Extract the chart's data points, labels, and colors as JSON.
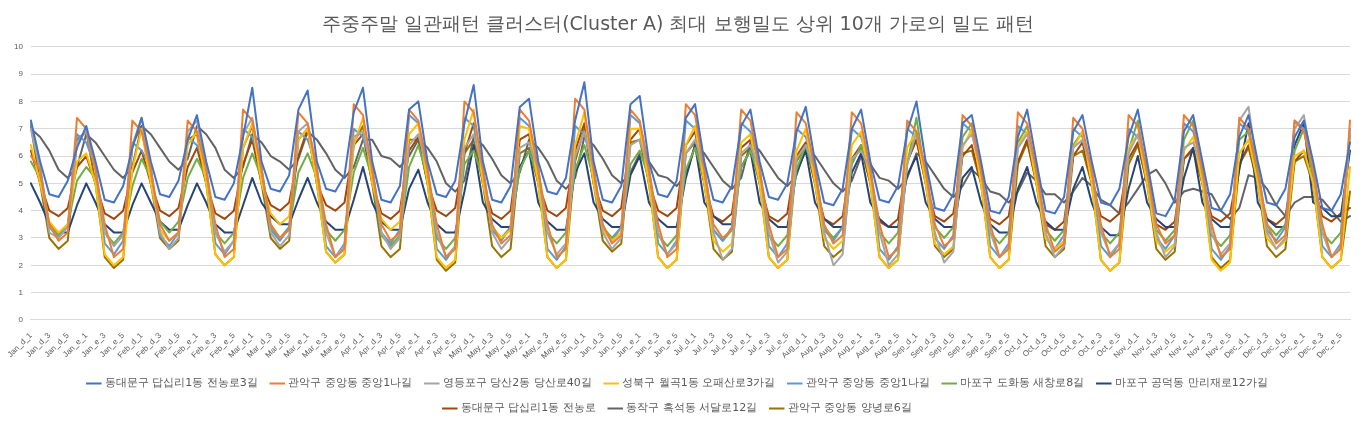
{
  "chart_data": {
    "type": "line",
    "title": "주중주말 일관패턴 클러스터(Cluster A) 최대 보행밀도 상위 10개 가로의 밀도 패턴",
    "categories": [
      "Jan_d_1",
      null,
      "Jan_d_3",
      null,
      "Jan_d_5",
      null,
      "Jan_e_1",
      null,
      "Jan_e_3",
      null,
      "Jan_e_5",
      null,
      "Feb_d_1",
      null,
      "Feb_d_3",
      null,
      "Feb_d_5",
      null,
      "Feb_e_1",
      null,
      "Feb_e_3",
      null,
      "Feb_e_5",
      null,
      "Mar_d_1",
      null,
      "Mar_d_3",
      null,
      "Mar_d_5",
      null,
      "Mar_e_1",
      null,
      "Mar_e_3",
      null,
      "Mar_e_5",
      null,
      "Apr_d_1",
      null,
      "Apr_d_3",
      null,
      "Apr_d_5",
      null,
      "Apr_e_1",
      null,
      "Apr_e_3",
      null,
      "Apr_e_5",
      null,
      "May_d_1",
      null,
      "May_d_3",
      null,
      "May_d_5",
      null,
      "May_e_1",
      null,
      "May_e_3",
      null,
      "May_e_5",
      null,
      "Jun_d_1",
      null,
      "Jun_d_3",
      null,
      "Jun_d_5",
      null,
      "Jun_e_1",
      null,
      "Jun_e_3",
      null,
      "Jun_e_5",
      null,
      "Jul_d_1",
      null,
      "Jul_d_3",
      null,
      "Jul_d_5",
      null,
      "Jul_e_1",
      null,
      "Jul_e_3",
      null,
      "Jul_e_5",
      null,
      "Aug_d_1",
      null,
      "Aug_d_3",
      null,
      "Aug_d_5",
      null,
      "Aug_e_1",
      null,
      "Aug_e_3",
      null,
      "Aug_e_5",
      null,
      "Sep_d_1",
      null,
      "Sep_d_3",
      null,
      "Sep_d_5",
      null,
      "Sep_e_1",
      null,
      "Sep_e_3",
      null,
      "Sep_e_5",
      null,
      "Oct_d_1",
      null,
      "Oct_d_3",
      null,
      "Oct_d_5",
      null,
      "Oct_e_1",
      null,
      "Oct_e_3",
      null,
      "Oct_e_5",
      null,
      "Nov_d_1",
      null,
      "Nov_d_3",
      null,
      "Nov_d_5",
      null,
      "Nov_e_1",
      null,
      "Nov_e_3",
      null,
      "Nov_e_5",
      null,
      "Dec_d_1",
      null,
      "Dec_d_3",
      null,
      "Dec_d_5",
      null,
      "Dec_e_1",
      null,
      "Dec_e_3",
      null,
      "Dec_e_5",
      null
    ],
    "series": [
      {
        "name": "동대문구 답십리1동 전농로3길",
        "color": "#4472c4",
        "values": [
          7.3,
          5.8,
          4.6,
          4.5,
          5.1,
          6.3,
          7.1,
          5.8,
          4.4,
          4.3,
          4.9,
          6.3,
          7.4,
          5.8,
          4.6,
          4.5,
          5.1,
          6.6,
          7.5,
          5.8,
          4.5,
          4.4,
          5.0,
          6.7,
          8.5,
          5.8,
          4.8,
          4.7,
          5.3,
          7.7,
          8.4,
          5.8,
          4.8,
          4.7,
          5.3,
          7.6,
          8.5,
          5.8,
          4.4,
          4.3,
          4.9,
          7.7,
          8.0,
          5.8,
          4.6,
          4.5,
          5.1,
          7.2,
          8.6,
          5.8,
          4.4,
          4.3,
          4.9,
          7.8,
          8.1,
          5.8,
          4.7,
          4.6,
          5.2,
          7.3,
          8.7,
          5.8,
          4.4,
          4.3,
          4.9,
          7.9,
          8.2,
          5.8,
          4.6,
          4.5,
          5.1,
          7.4,
          7.9,
          5.8,
          4.4,
          4.3,
          4.9,
          7.1,
          7.7,
          5.8,
          4.5,
          4.4,
          5.0,
          6.9,
          7.8,
          5.8,
          4.3,
          4.2,
          4.8,
          7.0,
          7.7,
          5.8,
          4.4,
          4.3,
          4.9,
          6.9,
          8.0,
          5.8,
          4.1,
          4.0,
          4.6,
          7.2,
          7.5,
          5.8,
          4.0,
          3.9,
          4.5,
          6.7,
          7.7,
          5.8,
          4.0,
          3.9,
          4.5,
          6.9,
          7.5,
          5.8,
          4.3,
          4.2,
          4.8,
          6.7,
          7.7,
          5.8,
          3.9,
          3.8,
          4.4,
          6.9,
          7.5,
          5.8,
          4.1,
          4.0,
          4.6,
          6.7,
          7.5,
          5.8,
          4.3,
          4.2,
          4.8,
          6.7,
          7.3,
          5.8,
          4.1,
          4.0,
          4.6,
          6.5
        ]
      },
      {
        "name": "관악구 중앙동 중앙1나길",
        "color": "#ed7d31",
        "values": [
          6.0,
          5.5,
          3.5,
          2.9,
          3.2,
          7.4,
          7.0,
          5.5,
          3.5,
          2.3,
          2.6,
          7.3,
          6.9,
          5.5,
          3.5,
          2.9,
          3.2,
          7.3,
          6.9,
          5.5,
          3.5,
          2.3,
          2.6,
          7.7,
          7.3,
          5.5,
          3.5,
          3.0,
          3.3,
          7.6,
          7.2,
          5.5,
          3.5,
          2.3,
          2.6,
          7.9,
          7.5,
          5.5,
          3.5,
          2.9,
          3.2,
          7.7,
          7.3,
          5.5,
          3.5,
          2.3,
          2.6,
          8.0,
          7.6,
          5.5,
          3.5,
          2.8,
          3.1,
          7.7,
          7.3,
          5.5,
          3.5,
          2.3,
          2.6,
          8.1,
          7.7,
          5.5,
          3.5,
          2.8,
          3.1,
          7.7,
          7.3,
          5.5,
          3.5,
          2.3,
          2.6,
          7.9,
          7.5,
          5.5,
          3.5,
          3.0,
          3.3,
          7.7,
          7.3,
          5.5,
          3.5,
          2.3,
          2.6,
          7.6,
          7.2,
          5.5,
          3.5,
          2.8,
          3.1,
          7.6,
          7.2,
          5.5,
          3.5,
          2.3,
          2.6,
          7.3,
          6.9,
          5.5,
          3.5,
          2.7,
          3.0,
          7.5,
          7.1,
          5.5,
          3.5,
          2.3,
          2.6,
          7.6,
          7.2,
          5.5,
          3.5,
          2.5,
          2.8,
          7.4,
          7.0,
          5.5,
          3.5,
          2.3,
          2.6,
          7.5,
          7.1,
          5.5,
          3.5,
          2.8,
          3.1,
          7.5,
          7.1,
          5.5,
          3.5,
          2.3,
          2.6,
          7.4,
          7.0,
          5.5,
          3.5,
          2.8,
          3.1,
          7.3,
          6.9,
          5.5,
          3.5,
          2.3,
          2.6,
          7.3
        ]
      },
      {
        "name": "영등포구 당산2동 당산로40길",
        "color": "#a5a5a5",
        "values": [
          7.0,
          5.5,
          3.2,
          3.0,
          3.4,
          6.5,
          6.9,
          5.5,
          3.2,
          2.7,
          3.1,
          6.4,
          7.4,
          5.5,
          3.2,
          2.6,
          3.0,
          6.9,
          7.3,
          5.5,
          3.2,
          2.5,
          2.9,
          6.8,
          7.4,
          5.5,
          3.2,
          2.7,
          3.1,
          6.9,
          7.2,
          5.5,
          3.2,
          2.3,
          2.7,
          6.7,
          6.9,
          5.5,
          3.2,
          2.6,
          3.0,
          6.4,
          6.8,
          5.5,
          3.2,
          2.3,
          2.7,
          6.3,
          6.8,
          5.5,
          3.2,
          2.6,
          3.0,
          6.3,
          6.5,
          5.5,
          3.2,
          2.4,
          2.8,
          6.0,
          6.9,
          5.5,
          3.2,
          2.6,
          3.0,
          6.4,
          6.6,
          5.5,
          3.2,
          2.4,
          2.8,
          6.1,
          6.6,
          5.5,
          3.2,
          2.2,
          2.6,
          6.1,
          6.4,
          5.5,
          3.2,
          2.1,
          2.5,
          5.9,
          6.4,
          5.5,
          3.2,
          2.0,
          2.4,
          5.9,
          6.2,
          5.5,
          3.2,
          2.0,
          2.4,
          5.7,
          6.9,
          5.5,
          3.2,
          2.1,
          2.5,
          6.4,
          6.8,
          5.5,
          3.2,
          2.3,
          2.7,
          6.3,
          6.8,
          5.5,
          3.2,
          2.3,
          2.7,
          6.3,
          6.6,
          5.5,
          3.2,
          2.4,
          2.8,
          6.1,
          6.8,
          5.5,
          3.2,
          2.3,
          2.7,
          6.3,
          6.5,
          5.5,
          3.2,
          2.4,
          2.8,
          7.3,
          7.8,
          5.5,
          3.2,
          2.6,
          3.0,
          7.0,
          7.5,
          5.5,
          3.2,
          2.3,
          2.7,
          6.8
        ]
      },
      {
        "name": "성북구 월곡1동 오패산로3가길",
        "color": "#ffc000",
        "values": [
          6.4,
          5.0,
          3.6,
          3.2,
          3.5,
          5.8,
          6.1,
          5.0,
          2.4,
          2.0,
          2.3,
          5.5,
          7.0,
          5.0,
          3.3,
          2.9,
          3.2,
          6.4,
          6.9,
          5.0,
          2.4,
          2.0,
          2.3,
          6.3,
          7.2,
          5.0,
          3.9,
          3.5,
          3.8,
          6.6,
          7.0,
          5.0,
          2.5,
          2.1,
          2.4,
          6.4,
          7.4,
          5.0,
          3.7,
          3.3,
          3.6,
          6.8,
          7.2,
          5.0,
          2.3,
          1.9,
          2.2,
          6.6,
          7.7,
          5.0,
          3.4,
          3.0,
          3.3,
          7.1,
          7.0,
          5.0,
          2.3,
          1.9,
          2.2,
          6.4,
          7.6,
          5.0,
          3.3,
          2.9,
          3.2,
          7.0,
          7.0,
          5.0,
          2.3,
          1.9,
          2.2,
          6.4,
          7.1,
          5.0,
          2.9,
          2.5,
          2.8,
          6.5,
          6.8,
          5.0,
          2.3,
          1.9,
          2.2,
          6.2,
          7.0,
          5.0,
          3.0,
          2.6,
          2.9,
          6.4,
          6.9,
          5.0,
          2.3,
          1.9,
          2.2,
          6.3,
          6.9,
          5.0,
          2.8,
          2.4,
          2.7,
          6.3,
          7.0,
          5.0,
          2.3,
          1.9,
          2.2,
          6.4,
          6.9,
          5.0,
          3.0,
          2.6,
          2.9,
          6.3,
          6.9,
          5.0,
          2.2,
          1.8,
          2.1,
          6.3,
          6.8,
          5.0,
          2.9,
          2.5,
          2.8,
          6.2,
          6.7,
          5.0,
          2.2,
          1.8,
          2.1,
          6.1,
          6.6,
          5.0,
          3.0,
          2.6,
          2.9,
          6.0,
          6.2,
          5.0,
          2.3,
          1.9,
          2.2,
          5.6
        ]
      },
      {
        "name": "관악구 중앙동 중앙1나길",
        "color": "#5b9bd5",
        "values": [
          7.2,
          5.6,
          3.4,
          3.0,
          3.5,
          6.8,
          6.5,
          5.6,
          2.8,
          2.4,
          2.9,
          6.5,
          6.2,
          5.6,
          3.1,
          2.7,
          3.2,
          6.7,
          6.4,
          5.6,
          2.8,
          2.4,
          2.9,
          7.0,
          6.7,
          5.6,
          3.3,
          2.9,
          3.4,
          6.9,
          6.6,
          5.6,
          2.7,
          2.3,
          2.8,
          7.0,
          6.7,
          5.6,
          3.2,
          2.8,
          3.3,
          7.5,
          7.2,
          5.6,
          2.6,
          2.2,
          2.7,
          7.4,
          7.1,
          5.6,
          3.3,
          2.9,
          3.4,
          7.4,
          7.1,
          5.6,
          2.6,
          2.2,
          2.7,
          7.1,
          6.8,
          5.6,
          3.3,
          2.9,
          3.4,
          7.5,
          7.2,
          5.6,
          2.8,
          2.4,
          2.9,
          7.3,
          7.0,
          5.6,
          3.3,
          2.9,
          3.4,
          7.2,
          6.9,
          5.6,
          2.7,
          2.3,
          2.8,
          7.0,
          6.7,
          5.6,
          3.3,
          2.9,
          3.4,
          7.0,
          6.7,
          5.6,
          2.6,
          2.2,
          2.7,
          7.0,
          6.7,
          5.6,
          3.0,
          2.6,
          3.1,
          7.2,
          6.9,
          5.6,
          2.7,
          2.3,
          2.8,
          7.1,
          6.8,
          5.6,
          3.0,
          2.6,
          3.1,
          7.0,
          6.7,
          5.6,
          2.7,
          2.3,
          2.8,
          7.0,
          6.7,
          5.6,
          3.0,
          2.6,
          3.1,
          7.2,
          6.9,
          5.6,
          2.6,
          2.2,
          2.7,
          7.2,
          6.9,
          5.6,
          3.3,
          2.9,
          3.4,
          7.3,
          7.0,
          5.6,
          2.7,
          2.3,
          2.8,
          7.0
        ]
      },
      {
        "name": "마포구 도화동 새창로8길",
        "color": "#70ad47",
        "values": [
          5.8,
          5.2,
          3.5,
          3.1,
          3.5,
          5.1,
          5.6,
          5.2,
          3.2,
          2.8,
          3.2,
          4.9,
          5.9,
          5.2,
          3.6,
          3.2,
          3.6,
          5.2,
          5.9,
          5.2,
          3.2,
          2.8,
          3.2,
          5.2,
          6.1,
          5.2,
          3.4,
          3.0,
          3.4,
          5.4,
          6.1,
          5.2,
          3.3,
          2.9,
          3.3,
          5.4,
          6.3,
          5.2,
          3.1,
          2.7,
          3.1,
          5.6,
          6.4,
          5.2,
          3.0,
          2.6,
          3.0,
          5.7,
          6.2,
          5.2,
          3.4,
          3.0,
          3.4,
          5.5,
          6.2,
          5.2,
          3.2,
          2.8,
          3.2,
          5.5,
          6.4,
          5.2,
          3.4,
          3.0,
          3.4,
          5.7,
          6.2,
          5.2,
          3.1,
          2.7,
          3.1,
          5.5,
          6.3,
          5.2,
          3.3,
          2.9,
          3.3,
          5.6,
          6.2,
          5.2,
          3.1,
          2.7,
          3.1,
          5.5,
          6.4,
          5.2,
          3.4,
          3.0,
          3.4,
          5.7,
          6.4,
          5.2,
          3.2,
          2.8,
          3.2,
          5.7,
          7.4,
          5.2,
          3.4,
          3.0,
          3.4,
          6.7,
          7.2,
          5.2,
          3.2,
          2.8,
          3.2,
          6.5,
          7.1,
          5.2,
          3.3,
          2.9,
          3.3,
          6.4,
          6.9,
          5.2,
          3.2,
          2.8,
          3.2,
          6.2,
          7.3,
          5.2,
          3.3,
          2.9,
          3.3,
          6.6,
          7.3,
          5.2,
          3.1,
          2.7,
          3.1,
          6.6,
          6.9,
          5.2,
          3.5,
          3.1,
          3.5,
          6.2,
          7.0,
          5.2,
          3.2,
          2.8,
          3.2,
          6.8
        ]
      },
      {
        "name": "마포구 공덕동 만리재로12가길",
        "color": "#264478",
        "values": [
          5.0,
          4.3,
          3.5,
          3.2,
          3.2,
          4.2,
          5.0,
          4.3,
          3.5,
          3.2,
          3.2,
          4.2,
          5.0,
          4.3,
          3.6,
          3.3,
          3.3,
          4.2,
          5.0,
          4.3,
          3.5,
          3.2,
          3.2,
          4.2,
          5.2,
          4.3,
          3.8,
          3.5,
          3.5,
          4.4,
          5.2,
          4.3,
          3.6,
          3.3,
          3.3,
          4.4,
          5.6,
          4.3,
          3.6,
          3.3,
          3.3,
          4.8,
          5.5,
          4.3,
          3.5,
          3.2,
          3.2,
          4.7,
          6.4,
          4.3,
          3.7,
          3.4,
          3.4,
          5.6,
          6.2,
          4.3,
          3.6,
          3.3,
          3.3,
          5.4,
          6.1,
          4.3,
          3.7,
          3.4,
          3.4,
          5.3,
          6.0,
          4.3,
          3.7,
          3.4,
          3.4,
          5.2,
          6.4,
          4.3,
          3.8,
          3.5,
          3.5,
          5.6,
          6.2,
          4.3,
          3.7,
          3.4,
          3.4,
          5.4,
          6.2,
          4.3,
          3.7,
          3.4,
          3.4,
          5.4,
          6.1,
          4.3,
          3.7,
          3.4,
          3.4,
          5.3,
          6.0,
          4.3,
          3.7,
          3.4,
          3.4,
          5.2,
          5.6,
          4.3,
          3.5,
          3.2,
          3.2,
          4.8,
          5.6,
          4.3,
          3.6,
          3.3,
          3.3,
          4.8,
          5.6,
          4.3,
          3.4,
          3.1,
          3.1,
          4.8,
          6.0,
          4.3,
          3.7,
          3.4,
          3.4,
          5.2,
          6.3,
          4.3,
          3.7,
          3.4,
          3.4,
          5.5,
          7.2,
          4.3,
          3.7,
          3.4,
          3.4,
          6.4,
          7.2,
          4.3,
          4.1,
          3.8,
          3.8,
          6.2
        ]
      },
      {
        "name": "동대문구 답십리1동 전농로",
        "color": "#9e480e",
        "values": [
          6.2,
          5.0,
          4.0,
          3.8,
          4.1,
          5.6,
          6.0,
          5.0,
          3.9,
          3.7,
          4.0,
          5.4,
          6.2,
          5.0,
          4.0,
          3.8,
          4.1,
          5.6,
          6.3,
          5.0,
          3.9,
          3.7,
          4.0,
          5.7,
          6.6,
          5.0,
          4.2,
          4.0,
          4.3,
          6.0,
          7.0,
          5.0,
          4.2,
          4.0,
          4.3,
          6.4,
          6.8,
          5.0,
          3.9,
          3.7,
          4.0,
          6.2,
          6.7,
          5.0,
          4.0,
          3.8,
          4.1,
          6.1,
          7.2,
          5.0,
          3.9,
          3.7,
          4.0,
          6.6,
          6.8,
          5.0,
          4.0,
          3.8,
          4.1,
          6.2,
          7.2,
          5.0,
          4.0,
          3.8,
          4.1,
          6.6,
          7.0,
          5.0,
          4.0,
          3.8,
          4.1,
          6.4,
          6.9,
          5.0,
          3.8,
          3.6,
          3.9,
          6.3,
          6.6,
          5.0,
          3.8,
          3.6,
          3.9,
          6.0,
          6.5,
          5.0,
          3.7,
          3.5,
          3.8,
          5.9,
          6.4,
          5.0,
          3.6,
          3.4,
          3.7,
          5.8,
          6.6,
          5.0,
          3.8,
          3.6,
          3.9,
          6.0,
          6.4,
          5.0,
          3.7,
          3.5,
          3.8,
          5.8,
          6.6,
          5.0,
          3.5,
          3.3,
          3.6,
          6.0,
          6.5,
          5.0,
          3.8,
          3.6,
          3.9,
          5.9,
          6.5,
          5.0,
          3.5,
          3.3,
          3.6,
          5.9,
          6.3,
          5.0,
          3.8,
          3.6,
          3.9,
          5.7,
          6.4,
          5.0,
          3.7,
          3.5,
          3.8,
          5.8,
          6.2,
          5.0,
          3.8,
          3.6,
          3.9,
          4.1
        ]
      },
      {
        "name": "동작구 흑석동 서달로12길",
        "color": "#636363",
        "values": [
          7.0,
          6.7,
          6.2,
          5.5,
          5.2,
          5.6,
          6.8,
          6.5,
          6.0,
          5.5,
          5.2,
          5.6,
          7.1,
          6.8,
          6.3,
          5.8,
          5.5,
          5.9,
          7.1,
          6.8,
          6.3,
          5.5,
          5.2,
          5.6,
          6.8,
          6.5,
          6.0,
          5.8,
          5.5,
          5.9,
          6.9,
          6.6,
          6.1,
          5.5,
          5.2,
          5.6,
          6.6,
          6.6,
          6.0,
          5.9,
          5.6,
          6.0,
          6.6,
          6.3,
          5.8,
          5.0,
          4.7,
          5.1,
          6.7,
          6.4,
          5.9,
          5.3,
          5.0,
          5.4,
          6.6,
          6.3,
          5.8,
          5.1,
          4.8,
          5.2,
          6.7,
          6.4,
          5.9,
          5.3,
          5.0,
          5.4,
          6.1,
          5.8,
          5.3,
          5.2,
          4.9,
          5.3,
          6.4,
          6.1,
          5.6,
          5.1,
          4.8,
          5.2,
          6.5,
          6.2,
          5.7,
          5.2,
          4.9,
          5.3,
          6.3,
          6.0,
          5.5,
          5.0,
          4.7,
          5.1,
          6.0,
          5.7,
          5.2,
          5.1,
          4.8,
          5.2,
          6.1,
          5.8,
          5.3,
          4.8,
          4.5,
          4.9,
          5.5,
          5.2,
          4.7,
          4.6,
          4.3,
          4.7,
          5.4,
          5.1,
          4.6,
          4.6,
          4.3,
          4.7,
          5.2,
          4.9,
          4.4,
          4.2,
          3.9,
          4.3,
          4.8,
          5.3,
          5.5,
          5.0,
          4.3,
          4.7,
          4.8,
          4.7,
          4.6,
          4.0,
          3.7,
          4.1,
          5.3,
          5.2,
          4.8,
          4.2,
          3.8,
          4.3,
          4.5,
          4.5,
          4.4,
          4.0,
          3.6,
          3.8
        ]
      },
      {
        "name": "관악구 중앙동 양녕로6길",
        "color": "#997300",
        "values": [
          7.1,
          5.0,
          3.0,
          2.6,
          2.9,
          6.6,
          6.9,
          5.0,
          2.3,
          1.9,
          2.2,
          6.4,
          7.1,
          5.0,
          3.0,
          2.6,
          2.9,
          6.6,
          6.8,
          5.0,
          2.4,
          2.0,
          2.3,
          6.3,
          7.1,
          5.0,
          3.0,
          2.6,
          2.9,
          6.6,
          7.0,
          5.0,
          2.5,
          2.1,
          2.4,
          6.5,
          7.1,
          5.0,
          2.7,
          2.3,
          2.6,
          6.6,
          6.6,
          5.0,
          2.2,
          1.8,
          2.1,
          6.1,
          6.6,
          5.0,
          2.7,
          2.3,
          2.6,
          6.1,
          6.3,
          5.0,
          2.3,
          1.9,
          2.2,
          5.8,
          7.0,
          5.0,
          2.9,
          2.5,
          2.8,
          6.5,
          6.6,
          5.0,
          2.3,
          1.9,
          2.2,
          6.1,
          6.5,
          5.0,
          2.6,
          2.2,
          2.5,
          6.0,
          6.3,
          5.0,
          2.3,
          1.9,
          2.2,
          5.8,
          6.4,
          5.0,
          2.7,
          2.3,
          2.6,
          5.9,
          6.3,
          5.0,
          2.3,
          1.9,
          2.2,
          5.8,
          6.6,
          5.0,
          2.7,
          2.3,
          2.6,
          6.1,
          6.2,
          5.0,
          2.3,
          1.9,
          2.2,
          5.7,
          6.5,
          5.0,
          2.7,
          2.3,
          2.6,
          6.0,
          6.2,
          5.0,
          2.2,
          1.8,
          2.1,
          5.7,
          6.4,
          5.0,
          2.6,
          2.2,
          2.5,
          5.9,
          6.2,
          5.0,
          2.3,
          1.9,
          2.2,
          5.7,
          6.3,
          5.0,
          2.7,
          2.3,
          2.6,
          5.8,
          6.0,
          5.0,
          2.3,
          1.9,
          2.2,
          4.7
        ]
      }
    ],
    "ylim": [
      0,
      10
    ],
    "yticks": [
      0,
      1,
      2,
      3,
      4,
      5,
      6,
      7,
      8,
      9,
      10
    ],
    "grid": "y",
    "legend": "bottom",
    "marker": "none",
    "line_style": "solid"
  }
}
